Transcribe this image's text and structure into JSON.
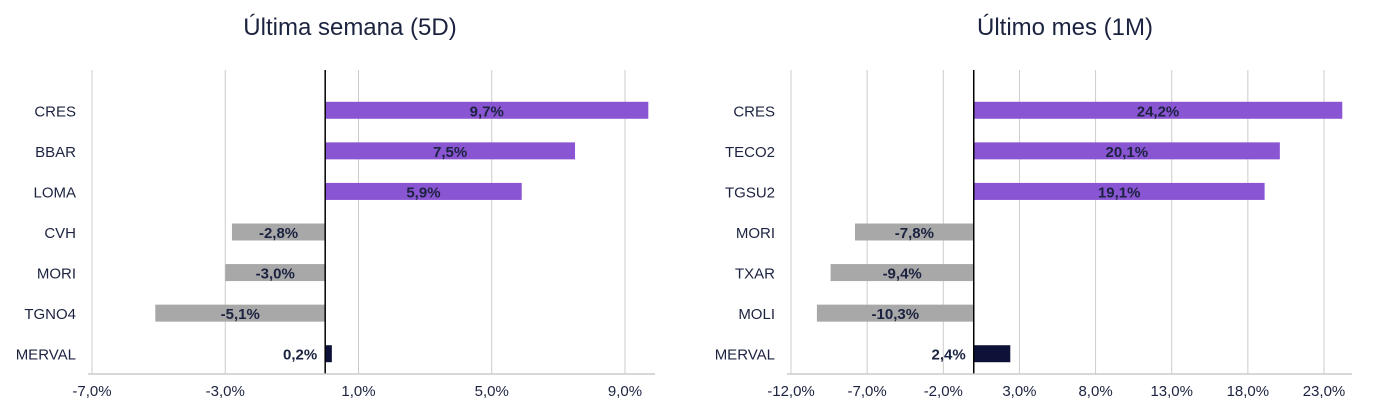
{
  "chart_data": [
    {
      "type": "bar",
      "orientation": "horizontal",
      "title": "Última semana (5D)",
      "categories": [
        "CRES",
        "BBAR",
        "LOMA",
        "CVH",
        "MORI",
        "TGNO4",
        "MERVAL"
      ],
      "values": [
        9.7,
        7.5,
        5.9,
        -2.8,
        -3.0,
        -5.1,
        0.2
      ],
      "data_labels": [
        "9,7%",
        "7,5%",
        "5,9%",
        "-2,8%",
        "-3,0%",
        "-5,1%",
        "0,2%"
      ],
      "xlim": [
        -7.0,
        9.0
      ],
      "xticks": [
        -7.0,
        -3.0,
        1.0,
        5.0,
        9.0
      ],
      "xtick_labels": [
        "-7,0%",
        "-3,0%",
        "1,0%",
        "5,0%",
        "9,0%"
      ],
      "grid": true
    },
    {
      "type": "bar",
      "orientation": "horizontal",
      "title": "Último mes (1M)",
      "categories": [
        "CRES",
        "TECO2",
        "TGSU2",
        "MORI",
        "TXAR",
        "MOLI",
        "MERVAL"
      ],
      "values": [
        24.2,
        20.1,
        19.1,
        -7.8,
        -9.4,
        -10.3,
        2.4
      ],
      "data_labels": [
        "24,2%",
        "20,1%",
        "19,1%",
        "-7,8%",
        "-9,4%",
        "-10,3%",
        "2,4%"
      ],
      "xlim": [
        -12.0,
        23.0
      ],
      "xticks": [
        -12.0,
        -7.0,
        -2.0,
        3.0,
        8.0,
        13.0,
        18.0,
        23.0
      ],
      "xtick_labels": [
        "-12,0%",
        "-7,0%",
        "-2,0%",
        "3,0%",
        "8,0%",
        "13,0%",
        "18,0%",
        "23,0%"
      ],
      "grid": true
    }
  ],
  "colors": {
    "positive": "#8a55d2",
    "negative": "#a8a8a8",
    "index": "#0f1238",
    "text": "#1c2340",
    "grid": "#cccccc",
    "axis": "#000000"
  }
}
